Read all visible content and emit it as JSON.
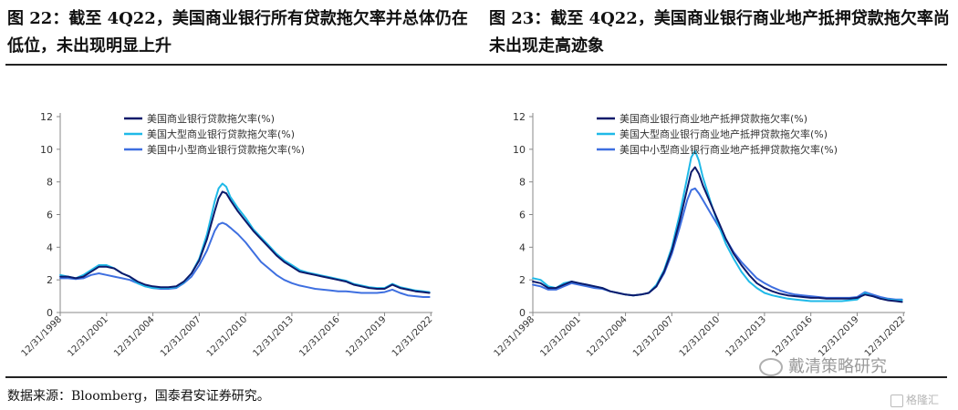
{
  "figures": {
    "left_title": "图 22：截至 4Q22，美国商业银行所有贷款拖欠率并总体仍在低位，未出现明显上升",
    "right_title": "图 23：截至 4Q22，美国商业银行商业地产抵押贷款拖欠率尚未出现走高迹象"
  },
  "source": "数据来源：Bloomberg，国泰君安证券研究。",
  "watermark": {
    "text": "戴清策略研究",
    "icon": "wechat-icon",
    "small_text": "格隆汇",
    "small_icon": "gelonghui-icon"
  },
  "colors": {
    "dark_navy": "#0d1a6b",
    "cyan": "#1fb9e8",
    "blue": "#3e6fe0"
  },
  "chart_data": [
    {
      "type": "line",
      "title": "图 22：截至 4Q22，美国商业银行所有贷款拖欠率并总体仍在低位，未出现明显上升",
      "ylim": [
        0,
        12
      ],
      "yticks": [
        "0",
        "2",
        "4",
        "6",
        "8",
        "10",
        "12"
      ],
      "xlim": [
        1998.997,
        2023.1
      ],
      "xticks": [
        "12/31/1998",
        "12/31/2001",
        "12/31/2004",
        "12/31/2007",
        "12/31/2010",
        "12/31/2013",
        "12/31/2016",
        "12/31/2019",
        "12/31/2022"
      ],
      "legend": "top-left",
      "series": [
        {
          "name": "美国商业银行贷款拖欠率(%)",
          "color": "#0d1a6b",
          "x": [
            1999.0,
            1999.5,
            2000.0,
            2000.5,
            2001.0,
            2001.5,
            2002.0,
            2002.5,
            2003.0,
            2003.5,
            2004.0,
            2004.5,
            2005.0,
            2005.5,
            2006.0,
            2006.5,
            2007.0,
            2007.5,
            2008.0,
            2008.5,
            2009.0,
            2009.25,
            2009.5,
            2009.75,
            2010.0,
            2010.5,
            2011.0,
            2011.5,
            2012.0,
            2012.5,
            2013.0,
            2013.5,
            2014.0,
            2014.5,
            2015.0,
            2015.5,
            2016.0,
            2016.5,
            2017.0,
            2017.5,
            2018.0,
            2018.5,
            2019.0,
            2019.5,
            2020.0,
            2020.5,
            2021.0,
            2021.5,
            2022.0,
            2022.5,
            2022.9
          ],
          "values": [
            2.2,
            2.2,
            2.1,
            2.2,
            2.5,
            2.8,
            2.8,
            2.7,
            2.4,
            2.2,
            1.9,
            1.7,
            1.6,
            1.55,
            1.55,
            1.6,
            1.9,
            2.4,
            3.2,
            4.5,
            6.2,
            7.0,
            7.4,
            7.3,
            6.9,
            6.2,
            5.6,
            5.0,
            4.5,
            4.0,
            3.5,
            3.1,
            2.8,
            2.5,
            2.4,
            2.3,
            2.2,
            2.1,
            2.0,
            1.9,
            1.7,
            1.6,
            1.5,
            1.45,
            1.45,
            1.7,
            1.5,
            1.4,
            1.3,
            1.25,
            1.2
          ]
        },
        {
          "name": "美国大型商业银行贷款拖欠率(%)",
          "color": "#1fb9e8",
          "x": [
            1999.0,
            1999.5,
            2000.0,
            2000.5,
            2001.0,
            2001.5,
            2002.0,
            2002.5,
            2003.0,
            2003.5,
            2004.0,
            2004.5,
            2005.0,
            2005.5,
            2006.0,
            2006.5,
            2007.0,
            2007.5,
            2008.0,
            2008.5,
            2009.0,
            2009.25,
            2009.5,
            2009.75,
            2010.0,
            2010.5,
            2011.0,
            2011.5,
            2012.0,
            2012.5,
            2013.0,
            2013.5,
            2014.0,
            2014.5,
            2015.0,
            2015.5,
            2016.0,
            2016.5,
            2017.0,
            2017.5,
            2018.0,
            2018.5,
            2019.0,
            2019.5,
            2020.0,
            2020.5,
            2021.0,
            2021.5,
            2022.0,
            2022.5,
            2022.9
          ],
          "values": [
            2.3,
            2.2,
            2.1,
            2.3,
            2.6,
            2.9,
            2.9,
            2.7,
            2.4,
            2.2,
            1.8,
            1.6,
            1.5,
            1.5,
            1.5,
            1.55,
            1.85,
            2.4,
            3.3,
            4.8,
            6.8,
            7.6,
            7.9,
            7.7,
            7.1,
            6.4,
            5.8,
            5.1,
            4.6,
            4.1,
            3.6,
            3.2,
            2.9,
            2.6,
            2.45,
            2.35,
            2.25,
            2.15,
            2.05,
            1.95,
            1.75,
            1.65,
            1.55,
            1.5,
            1.5,
            1.75,
            1.55,
            1.45,
            1.35,
            1.3,
            1.25
          ]
        },
        {
          "name": "美国中小型商业银行贷款拖欠率(%)",
          "color": "#3e6fe0",
          "x": [
            1999.0,
            1999.5,
            2000.0,
            2000.5,
            2001.0,
            2001.5,
            2002.0,
            2002.5,
            2003.0,
            2003.5,
            2004.0,
            2004.5,
            2005.0,
            2005.5,
            2006.0,
            2006.5,
            2007.0,
            2007.5,
            2008.0,
            2008.5,
            2009.0,
            2009.25,
            2009.5,
            2009.75,
            2010.0,
            2010.5,
            2011.0,
            2011.5,
            2012.0,
            2012.5,
            2013.0,
            2013.5,
            2014.0,
            2014.5,
            2015.0,
            2015.5,
            2016.0,
            2016.5,
            2017.0,
            2017.5,
            2018.0,
            2018.5,
            2019.0,
            2019.5,
            2020.0,
            2020.5,
            2021.0,
            2021.5,
            2022.0,
            2022.5,
            2022.9
          ],
          "values": [
            2.1,
            2.1,
            2.05,
            2.1,
            2.3,
            2.4,
            2.3,
            2.2,
            2.1,
            2.0,
            1.8,
            1.6,
            1.5,
            1.45,
            1.45,
            1.5,
            1.8,
            2.2,
            2.9,
            3.8,
            5.0,
            5.4,
            5.5,
            5.4,
            5.2,
            4.8,
            4.3,
            3.7,
            3.1,
            2.7,
            2.3,
            2.0,
            1.8,
            1.65,
            1.55,
            1.45,
            1.4,
            1.35,
            1.3,
            1.3,
            1.25,
            1.2,
            1.2,
            1.2,
            1.25,
            1.4,
            1.2,
            1.05,
            1.0,
            0.95,
            0.95
          ]
        }
      ]
    },
    {
      "type": "line",
      "title": "图 23：截至 4Q22，美国商业银行商业地产抵押贷款拖欠率尚未出现走高迹象",
      "ylim": [
        0,
        12
      ],
      "yticks": [
        "0",
        "2",
        "4",
        "6",
        "8",
        "10",
        "12"
      ],
      "xlim": [
        1998.997,
        2023.1
      ],
      "xticks": [
        "12/31/1998",
        "12/31/2001",
        "12/31/2004",
        "12/31/2007",
        "12/31/2010",
        "12/31/2013",
        "12/31/2016",
        "12/31/2019",
        "12/31/2022"
      ],
      "legend": "top-left",
      "series": [
        {
          "name": "美国商业银行商业地产抵押贷款拖欠率(%)",
          "color": "#0d1a6b",
          "x": [
            1999.0,
            1999.5,
            2000.0,
            2000.5,
            2001.0,
            2001.5,
            2002.0,
            2002.5,
            2003.0,
            2003.5,
            2004.0,
            2004.5,
            2005.0,
            2005.5,
            2006.0,
            2006.5,
            2007.0,
            2007.5,
            2008.0,
            2008.5,
            2009.0,
            2009.25,
            2009.5,
            2009.75,
            2010.0,
            2010.5,
            2011.0,
            2011.5,
            2012.0,
            2012.5,
            2013.0,
            2013.5,
            2014.0,
            2014.5,
            2015.0,
            2015.5,
            2016.0,
            2016.5,
            2017.0,
            2017.5,
            2018.0,
            2018.5,
            2019.0,
            2019.5,
            2020.0,
            2020.5,
            2021.0,
            2021.5,
            2022.0,
            2022.5,
            2022.9
          ],
          "values": [
            1.9,
            1.8,
            1.5,
            1.5,
            1.7,
            1.9,
            1.8,
            1.7,
            1.6,
            1.5,
            1.3,
            1.2,
            1.1,
            1.05,
            1.1,
            1.2,
            1.6,
            2.5,
            3.8,
            5.6,
            7.6,
            8.6,
            8.9,
            8.5,
            7.8,
            6.7,
            5.6,
            4.5,
            3.6,
            2.9,
            2.3,
            1.8,
            1.5,
            1.3,
            1.15,
            1.05,
            1.0,
            0.95,
            0.9,
            0.9,
            0.85,
            0.85,
            0.85,
            0.85,
            0.9,
            1.1,
            1.0,
            0.85,
            0.75,
            0.7,
            0.65
          ]
        },
        {
          "name": "美国大型商业银行商业地产抵押贷款拖欠率(%)",
          "color": "#1fb9e8",
          "x": [
            1999.0,
            1999.5,
            2000.0,
            2000.5,
            2001.0,
            2001.5,
            2002.0,
            2002.5,
            2003.0,
            2003.5,
            2004.0,
            2004.5,
            2005.0,
            2005.5,
            2006.0,
            2006.5,
            2007.0,
            2007.5,
            2008.0,
            2008.5,
            2009.0,
            2009.25,
            2009.5,
            2009.75,
            2010.0,
            2010.5,
            2011.0,
            2011.5,
            2012.0,
            2012.5,
            2013.0,
            2013.5,
            2014.0,
            2014.5,
            2015.0,
            2015.5,
            2016.0,
            2016.5,
            2017.0,
            2017.5,
            2018.0,
            2018.5,
            2019.0,
            2019.5,
            2020.0,
            2020.5,
            2021.0,
            2021.5,
            2022.0,
            2022.5,
            2022.9
          ],
          "values": [
            2.1,
            2.0,
            1.6,
            1.5,
            1.8,
            1.9,
            1.8,
            1.7,
            1.6,
            1.5,
            1.3,
            1.2,
            1.1,
            1.05,
            1.1,
            1.2,
            1.7,
            2.6,
            4.0,
            6.0,
            8.3,
            9.5,
            9.9,
            9.3,
            8.3,
            6.8,
            5.4,
            4.2,
            3.3,
            2.5,
            1.9,
            1.5,
            1.2,
            1.05,
            0.95,
            0.85,
            0.8,
            0.75,
            0.7,
            0.7,
            0.7,
            0.7,
            0.7,
            0.75,
            0.8,
            1.2,
            1.0,
            0.85,
            0.8,
            0.75,
            0.75
          ]
        },
        {
          "name": "美国中小型商业银行商业地产抵押贷款拖欠率(%)",
          "color": "#3e6fe0",
          "x": [
            1999.0,
            1999.5,
            2000.0,
            2000.5,
            2001.0,
            2001.5,
            2002.0,
            2002.5,
            2003.0,
            2003.5,
            2004.0,
            2004.5,
            2005.0,
            2005.5,
            2006.0,
            2006.5,
            2007.0,
            2007.5,
            2008.0,
            2008.5,
            2009.0,
            2009.25,
            2009.5,
            2009.75,
            2010.0,
            2010.5,
            2011.0,
            2011.5,
            2012.0,
            2012.5,
            2013.0,
            2013.5,
            2014.0,
            2014.5,
            2015.0,
            2015.5,
            2016.0,
            2016.5,
            2017.0,
            2017.5,
            2018.0,
            2018.5,
            2019.0,
            2019.5,
            2020.0,
            2020.5,
            2021.0,
            2021.5,
            2022.0,
            2022.5,
            2022.9
          ],
          "values": [
            1.7,
            1.6,
            1.4,
            1.4,
            1.6,
            1.8,
            1.7,
            1.6,
            1.5,
            1.45,
            1.3,
            1.2,
            1.1,
            1.05,
            1.1,
            1.2,
            1.6,
            2.4,
            3.6,
            5.2,
            6.9,
            7.5,
            7.6,
            7.3,
            6.9,
            6.1,
            5.3,
            4.5,
            3.7,
            3.1,
            2.6,
            2.1,
            1.8,
            1.55,
            1.35,
            1.2,
            1.1,
            1.05,
            1.0,
            0.95,
            0.9,
            0.9,
            0.9,
            0.9,
            0.95,
            1.25,
            1.1,
            0.95,
            0.85,
            0.8,
            0.8
          ]
        }
      ]
    }
  ]
}
